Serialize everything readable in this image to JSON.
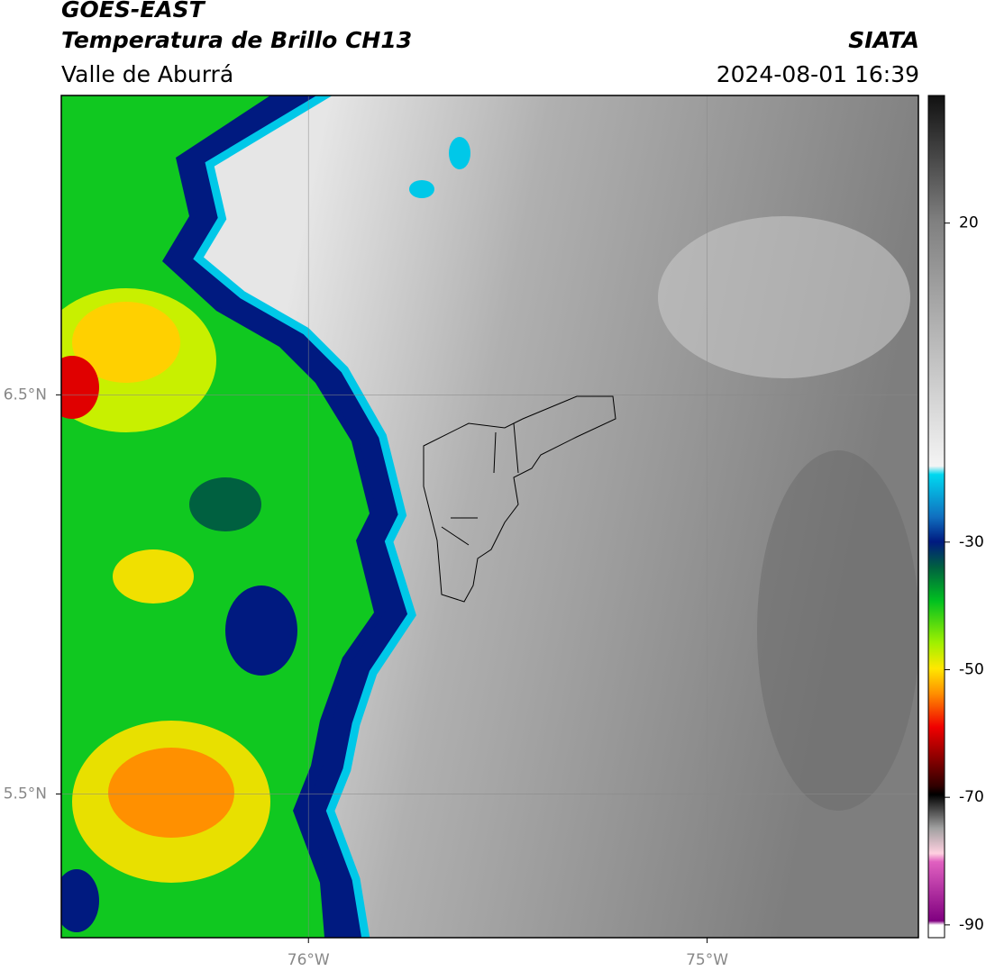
{
  "header": {
    "line1": "GOES-EAST",
    "line2": "Temperatura de Brillo CH13",
    "subtitle": "Valle de Aburrá",
    "brand": "SIATA",
    "datetime": "2024-08-01 16:39"
  },
  "map": {
    "lonlim": [
      -76.62,
      -74.47
    ],
    "latlim": [
      5.14,
      7.25
    ],
    "lonticks": [
      {
        "value": -76,
        "label": "76°W"
      },
      {
        "value": -75,
        "label": "75°W"
      }
    ],
    "latticks": [
      {
        "value": 6.5,
        "label": "6.5°N"
      },
      {
        "value": 5.5,
        "label": "5.5°N"
      }
    ],
    "grid": true
  },
  "colorbar": {
    "lim": [
      -92,
      40
    ],
    "ticks": [
      20,
      -30,
      -50,
      -70,
      -90
    ]
  }
}
